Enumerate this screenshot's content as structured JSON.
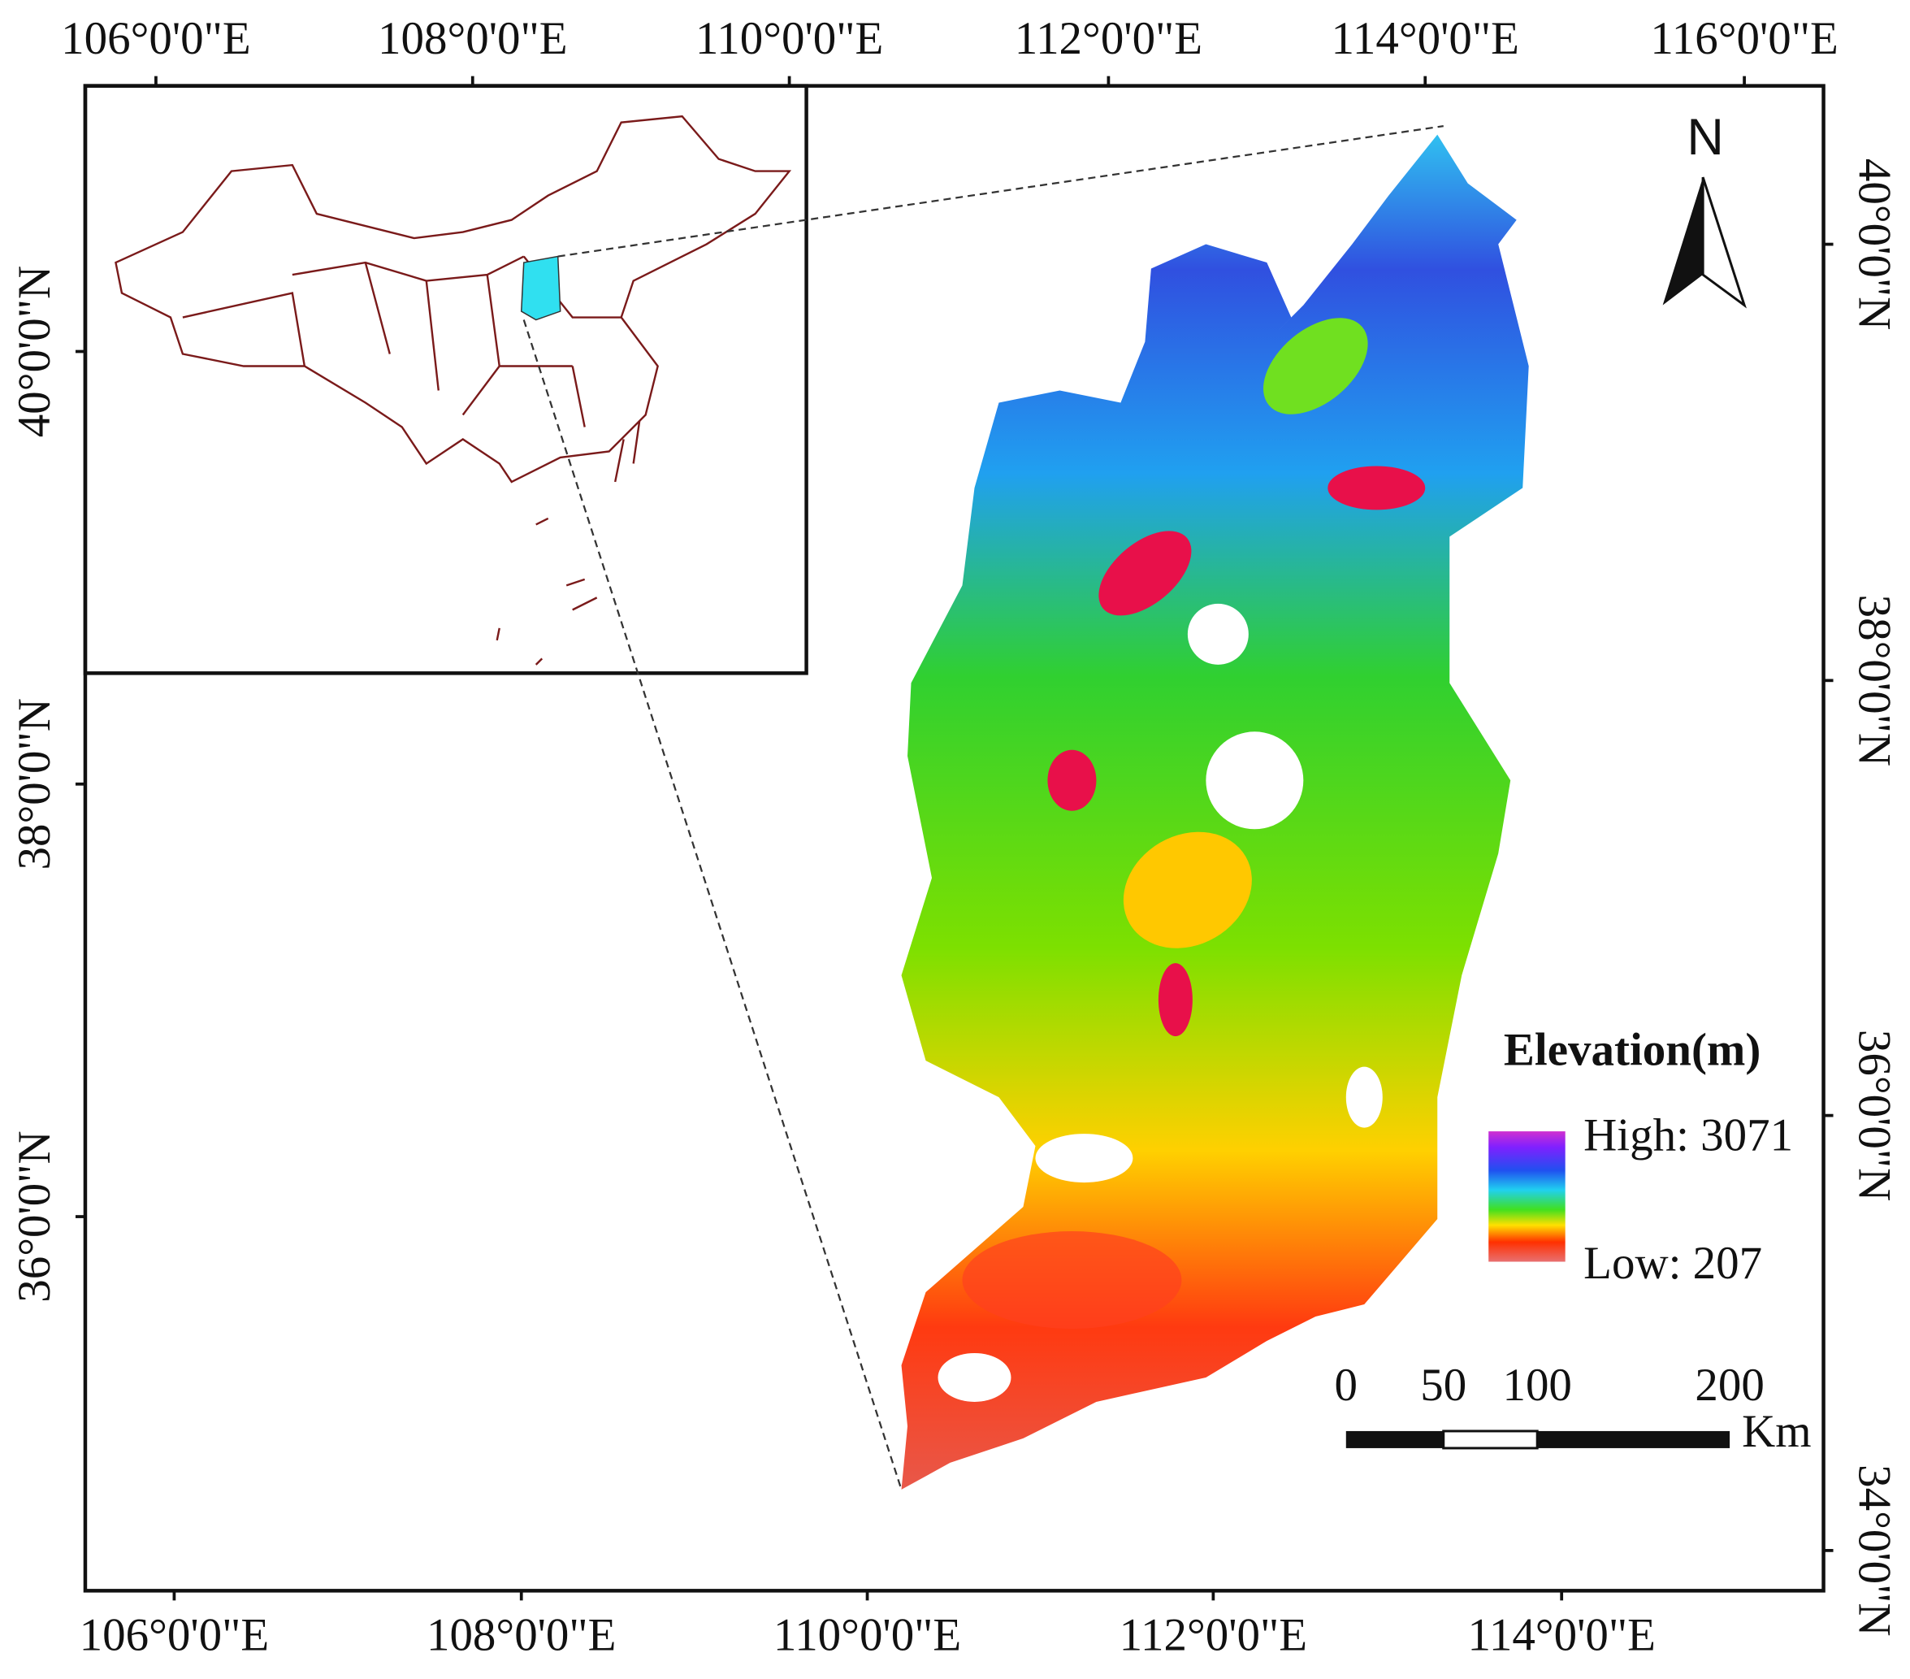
{
  "axes": {
    "top": [
      "106°0'0\"E",
      "108°0'0\"E",
      "110°0'0\"E",
      "112°0'0\"E",
      "114°0'0\"E",
      "116°0'0\"E"
    ],
    "bottom": [
      "106°0'0\"E",
      "108°0'0\"E",
      "110°0'0\"E",
      "112°0'0\"E",
      "114°0'0\"E"
    ],
    "left": [
      "40°0'0\"N",
      "38°0'0\"N",
      "36°0'0\"N"
    ],
    "right": [
      "40°0'0\"N",
      "38°0'0\"N",
      "36°0'0\"N",
      "34°0'0\"N"
    ]
  },
  "north": "N",
  "legend": {
    "title": "Elevation(m)",
    "high": "High: 3071",
    "low": "Low: 207"
  },
  "scale_bar": {
    "labels": [
      "0",
      "50",
      "100",
      "200"
    ],
    "unit": "Km"
  }
}
